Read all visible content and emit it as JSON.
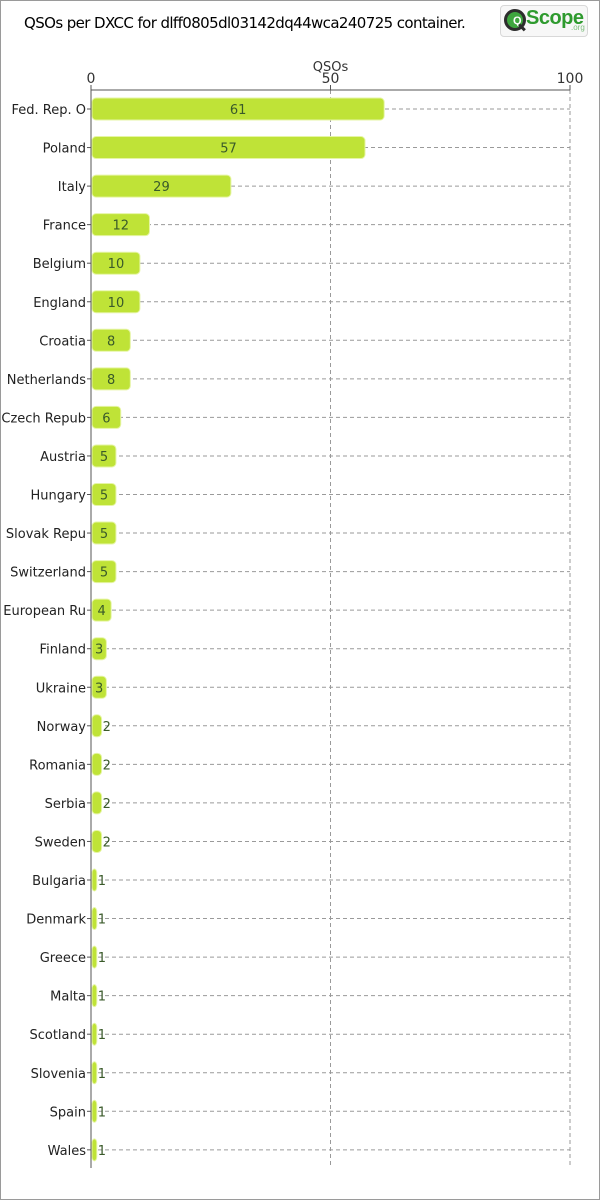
{
  "title": "QSOs per DXCC for dlff0805dl03142dq44wca240725 container.",
  "logo": {
    "mark": "Q",
    "text": "Scope",
    "suffix": ".org",
    "icon": "magnifier-icon"
  },
  "chart_data": {
    "type": "bar",
    "orientation": "horizontal",
    "xlabel": "QSOs",
    "ylabel": "",
    "xlim": [
      0,
      100
    ],
    "xticks": [
      0,
      50,
      100
    ],
    "axis_position": "top",
    "grid": true,
    "bar_color": "#bfe337",
    "categories": [
      "Fed. Rep. O",
      "Poland",
      "Italy",
      "France",
      "Belgium",
      "England",
      "Croatia",
      "Netherlands",
      "Czech Repub",
      "Austria",
      "Hungary",
      "Slovak Repu",
      "Switzerland",
      "European Ru",
      "Finland",
      "Ukraine",
      "Norway",
      "Romania",
      "Serbia",
      "Sweden",
      "Bulgaria",
      "Denmark",
      "Greece",
      "Malta",
      "Scotland",
      "Slovenia",
      "Spain",
      "Wales"
    ],
    "values": [
      61,
      57,
      29,
      12,
      10,
      10,
      8,
      8,
      6,
      5,
      5,
      5,
      5,
      4,
      3,
      3,
      2,
      2,
      2,
      2,
      1,
      1,
      1,
      1,
      1,
      1,
      1,
      1
    ]
  }
}
